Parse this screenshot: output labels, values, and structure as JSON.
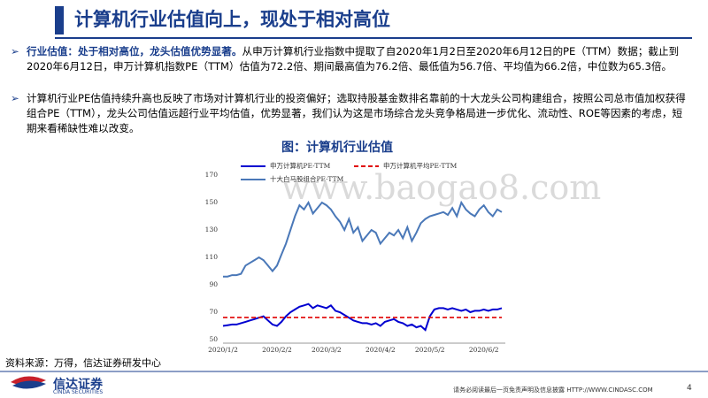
{
  "header": {
    "title": "计算机行业估值向上，现处于相对高位"
  },
  "bullets": [
    {
      "bold": "行业估值：处于相对高位，龙头估值优势显著。",
      "text": "从申万计算机行业指数中提取了自2020年1月2日至2020年6月12日的PE（TTM）数据；截止到2020年6月12日，申万计算机指数PE（TTM）估值为72.2倍、期间最高值为76.2倍、最低值为56.7倍、平均值为66.2倍，中位数为65.3倍。"
    },
    {
      "text": "计算机行业PE估值持续升高也反映了市场对计算机行业的投资偏好；选取持股基金数排名靠前的十大龙头公司构建组合，按照公司总市值加权获得组合PE（TTM），龙头公司估值远超行业平均估值，优势显著，我们认为这是市场综合龙头竞争格局进一步优化、流动性、ROE等因素的考虑，短期来看稀缺性难以改变。"
    }
  ],
  "chart_data": {
    "type": "line",
    "title": "图：计算机行业估值",
    "categories": [
      "2020/1/2",
      null,
      null,
      null,
      null,
      null,
      null,
      null,
      null,
      null,
      null,
      null,
      "2020/2/2",
      null,
      null,
      null,
      null,
      null,
      null,
      null,
      null,
      null,
      null,
      "2020/3/2",
      null,
      null,
      null,
      null,
      null,
      null,
      null,
      null,
      null,
      null,
      null,
      "2020/4/2",
      null,
      null,
      null,
      null,
      null,
      null,
      null,
      null,
      null,
      null,
      "2020/5/2",
      null,
      null,
      null,
      null,
      null,
      null,
      null,
      null,
      null,
      null,
      null,
      "2020/6/2",
      null,
      null,
      null,
      null
    ],
    "series": [
      {
        "name": "申万计算机PE-TTM",
        "color": "#0000d0",
        "dashed": false,
        "values": [
          60,
          60.5,
          61,
          61,
          62,
          63,
          64,
          65,
          66,
          67,
          64,
          61,
          60,
          63,
          67,
          70,
          72,
          74,
          75,
          76,
          73,
          75,
          74,
          73,
          75,
          71,
          70,
          68,
          66,
          64,
          63,
          62,
          62,
          61,
          62,
          60,
          63,
          64,
          65,
          63,
          62,
          60,
          61,
          59,
          60,
          57,
          67,
          72,
          73,
          73,
          72,
          73,
          72,
          71,
          72,
          70,
          71,
          71,
          72,
          71,
          72,
          72,
          73
        ]
      },
      {
        "name": "申万计算机平均PE-TTM",
        "color": "#e00000",
        "dashed": true,
        "values": [
          66.2,
          66.2,
          66.2,
          66.2,
          66.2,
          66.2,
          66.2,
          66.2,
          66.2,
          66.2,
          66.2,
          66.2,
          66.2,
          66.2,
          66.2,
          66.2,
          66.2,
          66.2,
          66.2,
          66.2,
          66.2,
          66.2,
          66.2,
          66.2,
          66.2,
          66.2,
          66.2,
          66.2,
          66.2,
          66.2,
          66.2,
          66.2,
          66.2,
          66.2,
          66.2,
          66.2,
          66.2,
          66.2,
          66.2,
          66.2,
          66.2,
          66.2,
          66.2,
          66.2,
          66.2,
          66.2,
          66.2,
          66.2,
          66.2,
          66.2,
          66.2,
          66.2,
          66.2,
          66.2,
          66.2,
          66.2,
          66.2,
          66.2,
          66.2,
          66.2,
          66.2,
          66.2,
          66.2
        ]
      },
      {
        "name": "十大白马股组合PE-TTM",
        "color": "#4a78b8",
        "dashed": false,
        "values": [
          96,
          96,
          97,
          97,
          98,
          104,
          106,
          108,
          110,
          108,
          104,
          100,
          104,
          112,
          120,
          130,
          140,
          148,
          145,
          150,
          142,
          146,
          150,
          148,
          145,
          140,
          136,
          130,
          138,
          128,
          132,
          122,
          126,
          130,
          128,
          120,
          124,
          128,
          126,
          130,
          124,
          132,
          122,
          128,
          135,
          138,
          140,
          141,
          142,
          143,
          141,
          146,
          140,
          150,
          145,
          142,
          140,
          145,
          148,
          143,
          140,
          145,
          143
        ]
      }
    ],
    "ylim": [
      50,
      170
    ],
    "yticks": [
      50,
      70,
      90,
      110,
      130,
      150,
      170
    ],
    "grid": false
  },
  "source": "资料来源：万得，信达证券研发中心",
  "watermark": "www.baogao8.com",
  "footer": {
    "logo": "信达证券",
    "logo_en": "CINDA SECURITIES",
    "notice": "请务必阅读最后一页免责声明及信息披露 HTTP://WWW.CINDASC.COM",
    "page": "4"
  }
}
